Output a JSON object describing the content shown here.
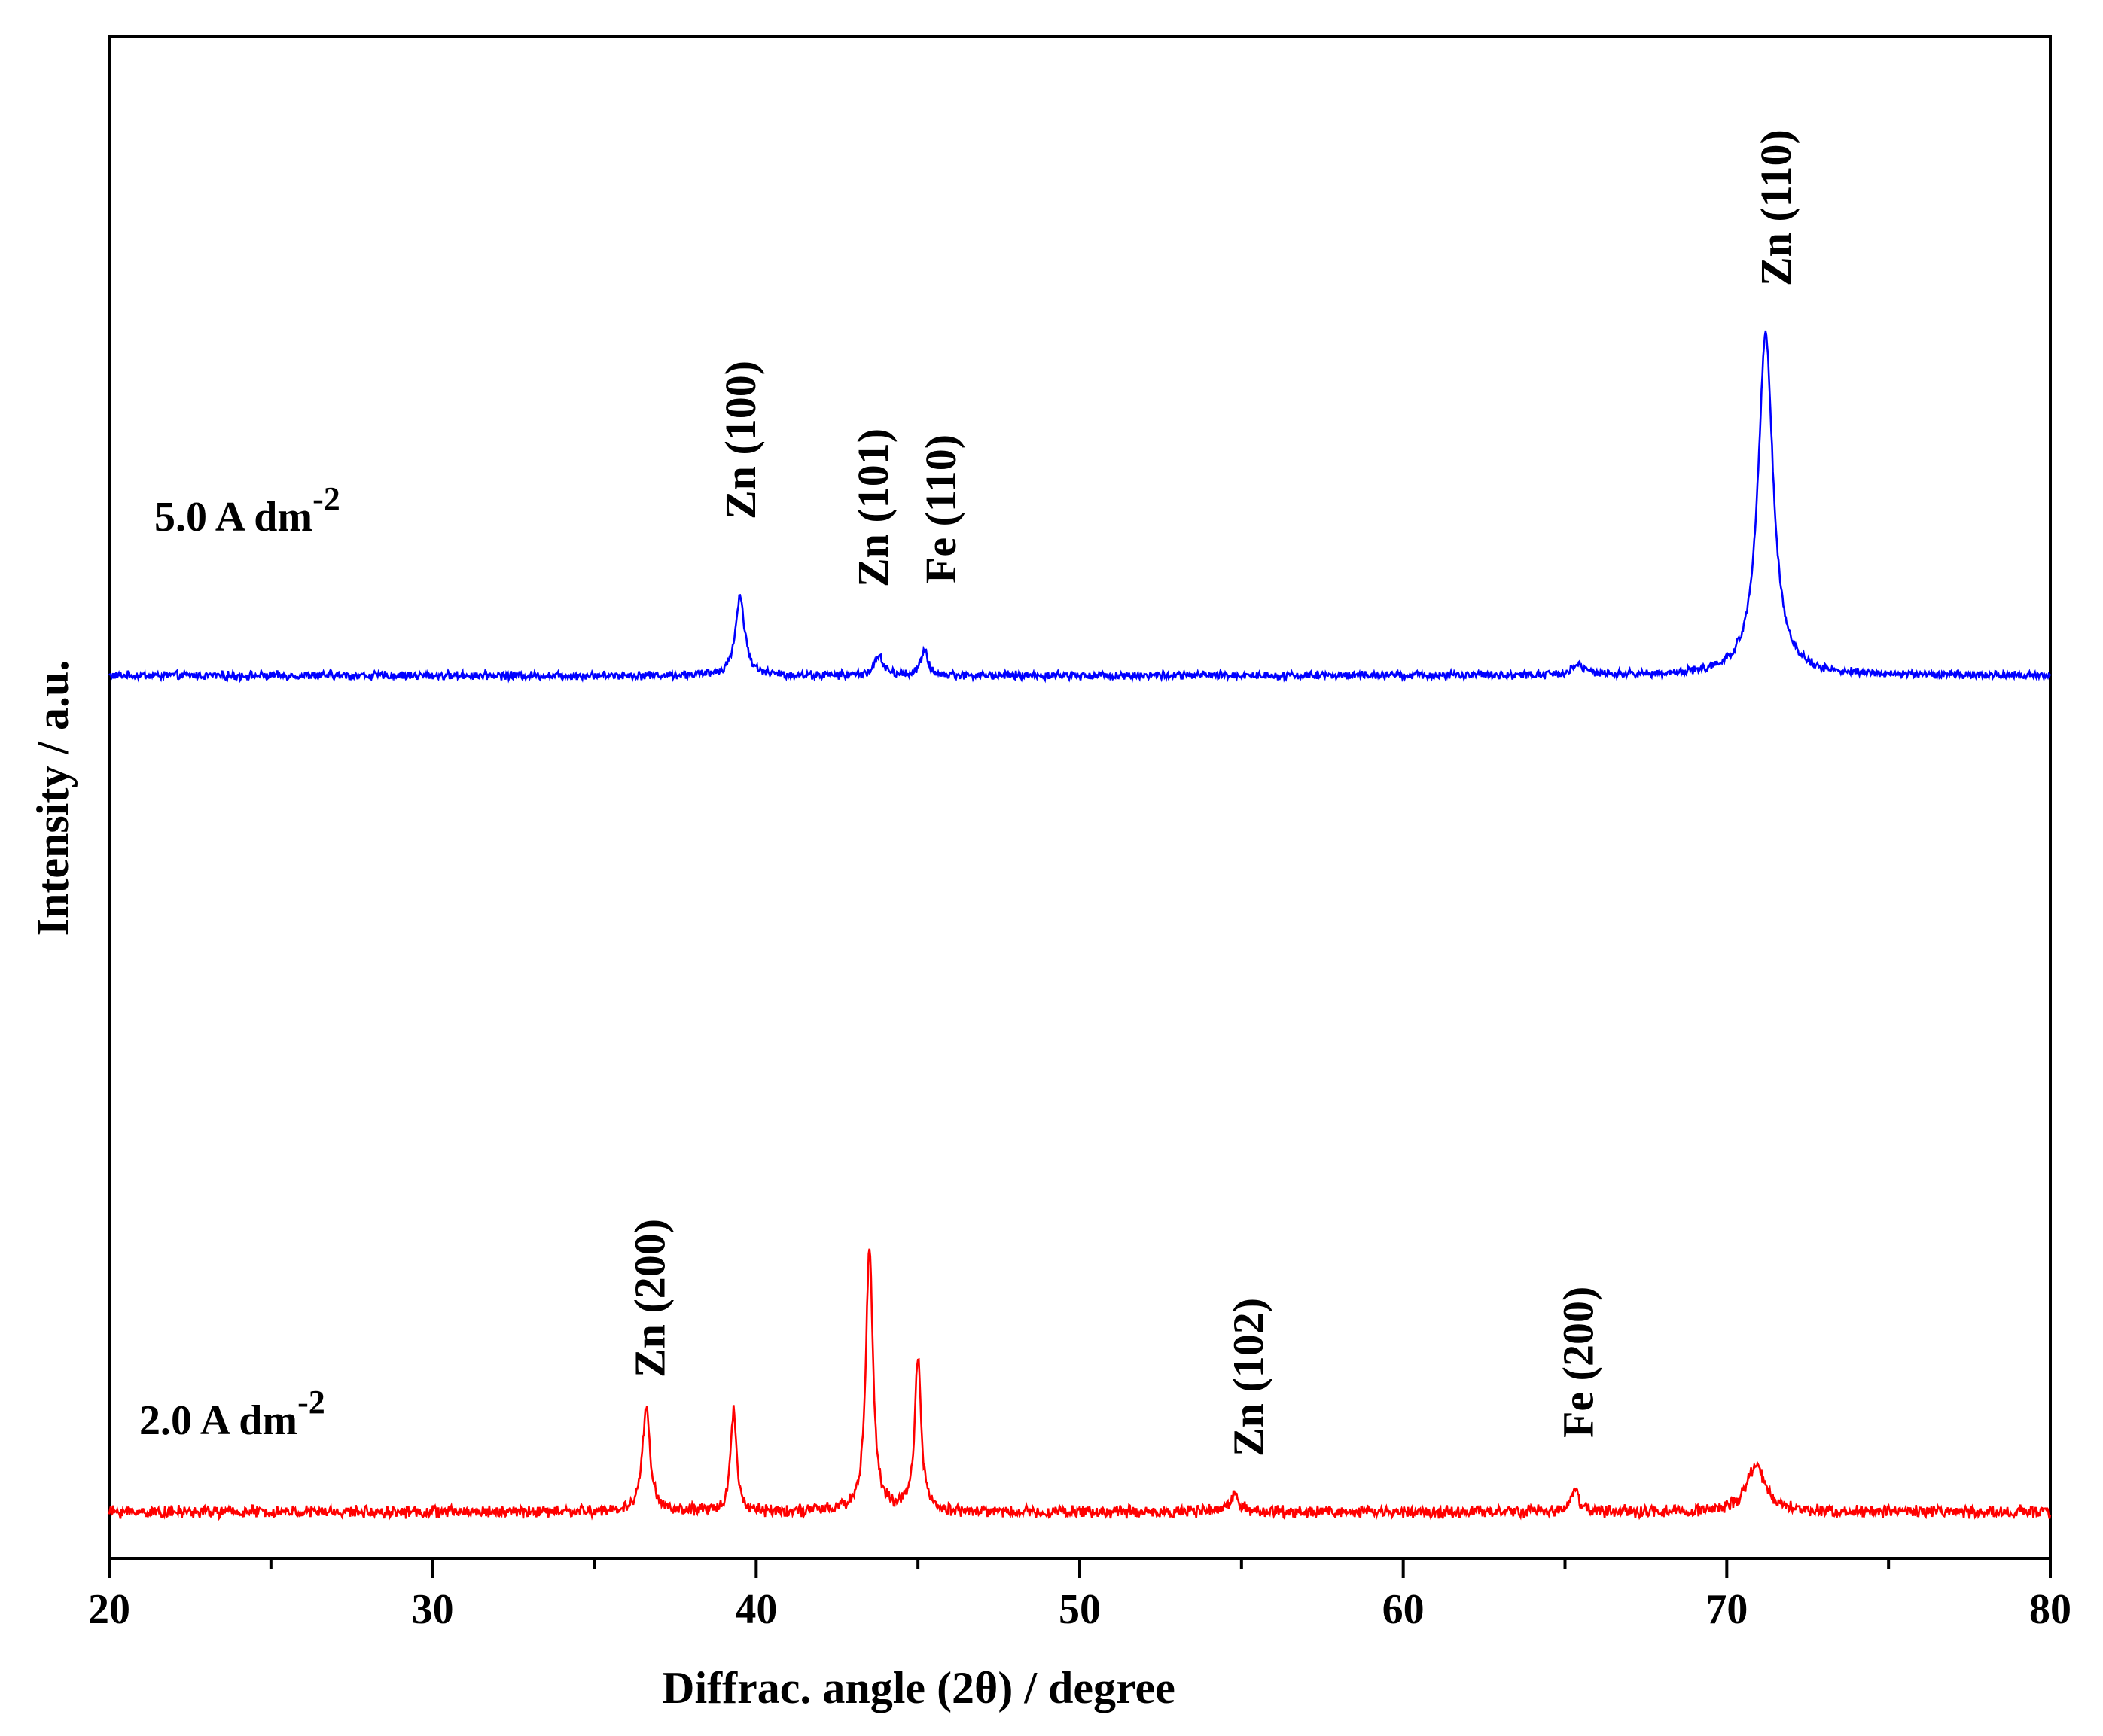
{
  "chart_data": {
    "type": "line",
    "title": "",
    "xlabel": "Diffrac. angle (2θ) / degree",
    "ylabel": "Intensity / a.u.",
    "xlim": [
      20,
      80
    ],
    "ylim": [
      0,
      1
    ],
    "xticks": [
      20,
      30,
      40,
      50,
      60,
      70,
      80
    ],
    "minor_xtick_step": 5,
    "grid": false,
    "legend": "none",
    "series": [
      {
        "name": "5.0 A dm",
        "name_superscript": "-2",
        "color": "#0000ff",
        "baseline": 0.58,
        "noise": 0.0022,
        "peaks": [
          {
            "x": 39.5,
            "height": 0.052,
            "width": 0.17
          },
          {
            "x": 43.8,
            "height": 0.012,
            "width": 0.17
          },
          {
            "x": 45.2,
            "height": 0.016,
            "width": 0.13
          },
          {
            "x": 65.4,
            "height": 0.007,
            "width": 0.22
          },
          {
            "x": 71.2,
            "height": 0.225,
            "width": 0.28
          }
        ]
      },
      {
        "name": "2.0 A dm",
        "name_superscript": "-2",
        "color": "#ff0000",
        "baseline": 0.0305,
        "noise": 0.0032,
        "peaks": [
          {
            "x": 36.6,
            "height": 0.07,
            "width": 0.14
          },
          {
            "x": 39.3,
            "height": 0.067,
            "width": 0.11
          },
          {
            "x": 43.5,
            "height": 0.174,
            "width": 0.13
          },
          {
            "x": 45.0,
            "height": 0.1,
            "width": 0.12
          },
          {
            "x": 54.8,
            "height": 0.013,
            "width": 0.15
          },
          {
            "x": 65.3,
            "height": 0.015,
            "width": 0.14
          },
          {
            "x": 70.9,
            "height": 0.03,
            "width": 0.35
          }
        ]
      }
    ],
    "annotations": [
      {
        "text": "Zn (100)",
        "x": 39.5,
        "series": 0
      },
      {
        "text": "Zn (101)",
        "x": 43.6,
        "series": 0
      },
      {
        "text": "Fe (110)",
        "x": 45.7,
        "series": 0
      },
      {
        "text": "Zn (110)",
        "x": 71.5,
        "series": 0
      },
      {
        "text": "Zn (200)",
        "x": 36.7,
        "series": 1
      },
      {
        "text": "Zn (102)",
        "x": 55.2,
        "series": 1
      },
      {
        "text": "Fe (200)",
        "x": 65.4,
        "series": 1
      }
    ]
  }
}
